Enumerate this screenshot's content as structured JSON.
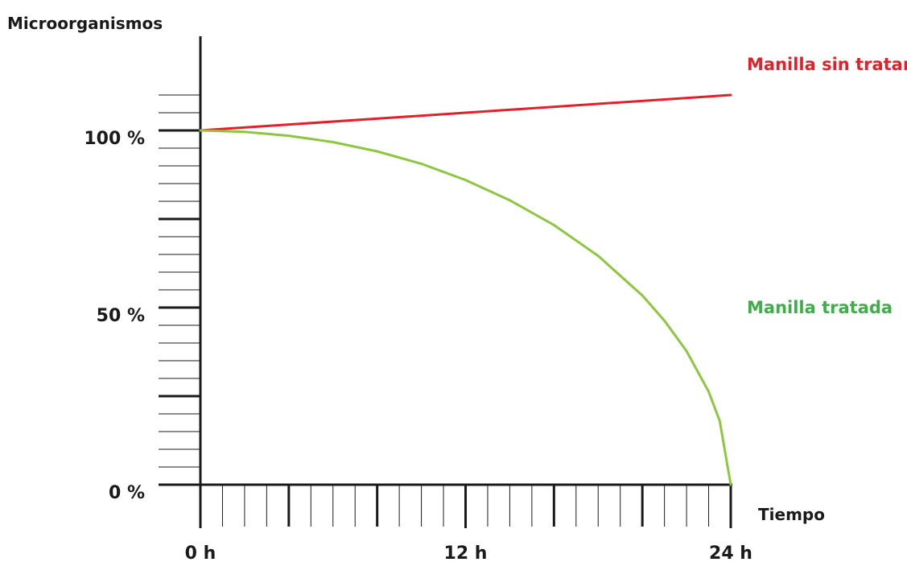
{
  "chart_data": {
    "type": "line",
    "title": "",
    "ylabel": "Microorganismos",
    "xlabel": "Tiempo",
    "x_ticks": [
      {
        "value": 0,
        "label": "0 h"
      },
      {
        "value": 12,
        "label": "12 h"
      },
      {
        "value": 24,
        "label": "24 h"
      }
    ],
    "y_ticks": [
      {
        "value": 0,
        "label": "0 %"
      },
      {
        "value": 50,
        "label": "50 %"
      },
      {
        "value": 100,
        "label": "100 %"
      }
    ],
    "xlim": [
      0,
      24
    ],
    "ylim": [
      0,
      110
    ],
    "grid": false,
    "series": [
      {
        "name": "Manilla sin tratar",
        "color": "#e3202a",
        "x": [
          0,
          24
        ],
        "y": [
          100,
          110
        ]
      },
      {
        "name": "Manilla tratada",
        "color": "#8dc63f",
        "label_color": "#3fae49",
        "x": [
          0,
          2,
          4,
          6,
          8,
          10,
          12,
          14,
          16,
          18,
          20,
          21,
          22,
          23,
          23.5,
          24
        ],
        "y": [
          100,
          99.6,
          98.5,
          96.7,
          94.1,
          90.6,
          86,
          80.3,
          73.3,
          64.6,
          53.4,
          46.3,
          37.7,
          26.3,
          18,
          0
        ]
      }
    ]
  }
}
